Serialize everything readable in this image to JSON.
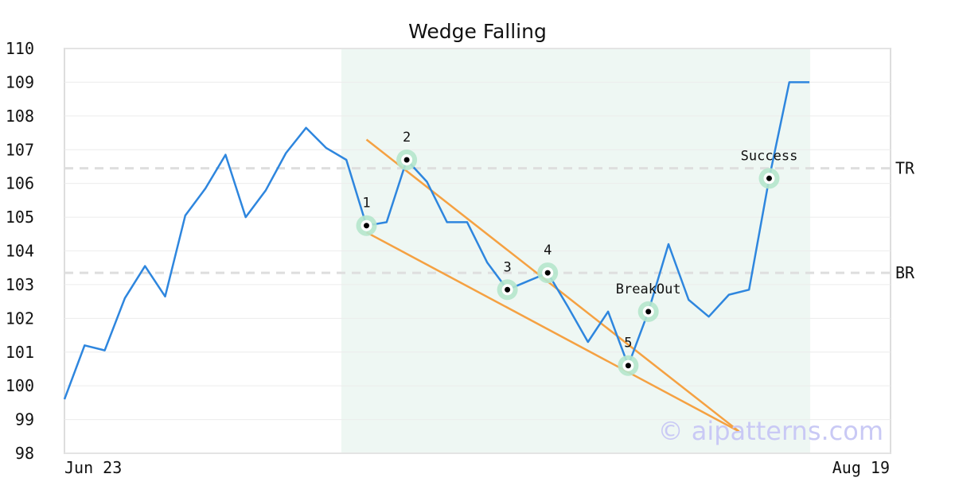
{
  "chart_data": {
    "type": "line",
    "title": "Wedge Falling",
    "ylim": [
      98,
      110
    ],
    "yticks": [
      98,
      99,
      100,
      101,
      102,
      103,
      104,
      105,
      106,
      107,
      108,
      109,
      110
    ],
    "x_tick_labels": [
      {
        "label": "Jun 23",
        "index": 0
      },
      {
        "label": "Aug 19",
        "index": 41
      }
    ],
    "series": [
      {
        "color": "#2e86de",
        "values": [
          99.6,
          101.2,
          101.05,
          102.6,
          103.55,
          102.65,
          105.05,
          105.85,
          106.85,
          105.0,
          105.8,
          106.9,
          107.65,
          107.05,
          106.7,
          104.75,
          104.85,
          106.7,
          106.05,
          104.85,
          104.85,
          103.65,
          102.85,
          103.1,
          103.35,
          102.35,
          101.3,
          102.2,
          100.6,
          102.2,
          104.2,
          102.55,
          102.05,
          102.7,
          102.85,
          106.15,
          109.0,
          109.0
        ]
      }
    ],
    "highlight_region": {
      "from_index": 13,
      "to_index": 37,
      "color": "#eef7f3"
    },
    "hlines": [
      {
        "label": "TR",
        "y": 106.45
      },
      {
        "label": "BR",
        "y": 103.35
      }
    ],
    "trendlines": [
      {
        "from": [
          15,
          107.3
        ],
        "to": [
          33.5,
          98.65
        ],
        "color": "#f5a142"
      },
      {
        "from": [
          15,
          104.55
        ],
        "to": [
          33.5,
          98.65
        ],
        "color": "#f5a142"
      }
    ],
    "annotations": [
      {
        "label": "1",
        "index": 15,
        "y": 104.75
      },
      {
        "label": "2",
        "index": 17,
        "y": 106.7
      },
      {
        "label": "3",
        "index": 22,
        "y": 102.85
      },
      {
        "label": "4",
        "index": 24,
        "y": 103.35
      },
      {
        "label": "5",
        "index": 28,
        "y": 100.6
      },
      {
        "label": "BreakOut",
        "index": 29,
        "y": 102.2
      },
      {
        "label": "Success",
        "index": 35,
        "y": 106.15
      }
    ],
    "watermark": "© aipatterns.com",
    "grid": true
  }
}
